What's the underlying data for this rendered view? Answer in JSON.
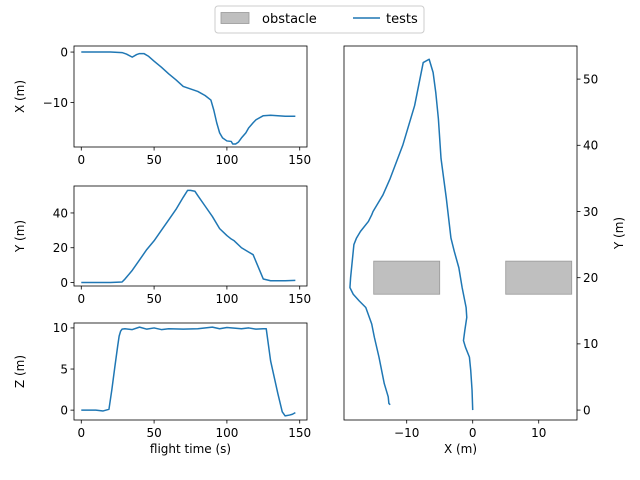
{
  "legend": {
    "entries": [
      {
        "label": "obstacle",
        "kind": "patch",
        "color": "#bfbfbf",
        "edge": "#999999"
      },
      {
        "label": "tests",
        "kind": "line",
        "color": "#1f77b4"
      }
    ],
    "placement": "top-center"
  },
  "chart_data": [
    {
      "id": "x_vs_time",
      "type": "line",
      "xlabel": "",
      "ylabel": "X (m)",
      "xlim": [
        -5,
        155
      ],
      "ylim": [
        -18.8,
        1.2
      ],
      "xticks": [
        0,
        50,
        100,
        150
      ],
      "yticks": [
        0,
        -10
      ],
      "series": [
        {
          "color": "#1f77b4",
          "x": [
            0,
            10,
            20,
            28,
            31,
            35,
            38,
            40,
            43,
            46,
            50,
            55,
            60,
            65,
            70,
            75,
            80,
            85,
            89,
            91,
            93,
            95,
            97,
            100,
            103,
            104,
            106,
            108,
            110,
            113,
            115,
            118,
            120,
            125,
            130,
            135,
            140,
            147
          ],
          "y": [
            0,
            0,
            0,
            -0.1,
            -0.4,
            -1.0,
            -0.5,
            -0.3,
            -0.3,
            -0.8,
            -1.8,
            -3.0,
            -4.3,
            -5.5,
            -6.8,
            -7.3,
            -7.8,
            -8.6,
            -9.5,
            -11.5,
            -14.0,
            -16.0,
            -17.0,
            -17.6,
            -17.7,
            -18.2,
            -18.2,
            -17.8,
            -17.0,
            -16.0,
            -15.0,
            -14.0,
            -13.4,
            -12.6,
            -12.5,
            -12.6,
            -12.7,
            -12.7
          ]
        }
      ]
    },
    {
      "id": "y_vs_time",
      "type": "line",
      "xlabel": "",
      "ylabel": "Y (m)",
      "xlim": [
        -5,
        155
      ],
      "ylim": [
        -2,
        55.5
      ],
      "xticks": [
        0,
        50,
        100,
        150
      ],
      "yticks": [
        0,
        20,
        40
      ],
      "series": [
        {
          "color": "#1f77b4",
          "x": [
            0,
            10,
            20,
            28,
            30,
            35,
            40,
            45,
            50,
            55,
            60,
            65,
            70,
            73,
            75,
            78,
            80,
            85,
            90,
            95,
            100,
            103,
            105,
            110,
            115,
            118,
            120,
            125,
            130,
            140,
            147
          ],
          "y": [
            0,
            0,
            0,
            0.3,
            2,
            7,
            13,
            19,
            24,
            30,
            36,
            42,
            49,
            53,
            53,
            52.5,
            50,
            44,
            38,
            31,
            27,
            25,
            24,
            20,
            17.5,
            16,
            12,
            2,
            1,
            1,
            1.2
          ]
        }
      ]
    },
    {
      "id": "z_vs_time",
      "type": "line",
      "xlabel": "flight time (s)",
      "ylabel": "Z (m)",
      "xlim": [
        -5,
        155
      ],
      "ylim": [
        -1.2,
        10.6
      ],
      "xticks": [
        0,
        50,
        100,
        150
      ],
      "yticks": [
        0,
        5,
        10
      ],
      "series": [
        {
          "color": "#1f77b4",
          "x": [
            0,
            5,
            10,
            15,
            19,
            21,
            23,
            25,
            26,
            27,
            28,
            30,
            35,
            40,
            45,
            50,
            55,
            60,
            70,
            80,
            90,
            95,
            100,
            110,
            115,
            120,
            125,
            126,
            127,
            130,
            135,
            138,
            140,
            143,
            145,
            147
          ],
          "y": [
            0,
            0,
            0,
            -0.1,
            0.1,
            2.5,
            5.2,
            7.8,
            9.0,
            9.6,
            9.85,
            9.9,
            9.8,
            10.1,
            9.85,
            10.0,
            9.8,
            9.9,
            9.85,
            9.9,
            10.1,
            9.9,
            10.05,
            9.9,
            10.0,
            9.85,
            9.9,
            9.9,
            9.9,
            6,
            2,
            -0.2,
            -0.7,
            -0.6,
            -0.5,
            -0.3
          ]
        }
      ]
    },
    {
      "id": "top_down",
      "type": "line",
      "xlabel": "X (m)",
      "ylabel": "Y (m)",
      "xlim": [
        -19.5,
        15.8
      ],
      "ylim": [
        -1.5,
        55
      ],
      "xticks": [
        -10,
        0,
        10
      ],
      "yticks": [
        0,
        10,
        20,
        30,
        40,
        50
      ],
      "y_axis_side": "right",
      "obstacles": [
        {
          "x": [
            -15,
            -5
          ],
          "y": [
            17.5,
            22.5
          ]
        },
        {
          "x": [
            5,
            15
          ],
          "y": [
            17.5,
            22.5
          ]
        }
      ],
      "series": [
        {
          "color": "#1f77b4",
          "x": [
            0,
            -0.1,
            -0.3,
            -0.5,
            -1.1,
            -1.4,
            -1.2,
            -0.9,
            -1.0,
            -1.6,
            -2.1,
            -2.8,
            -3.3,
            -4.0,
            -4.8,
            -5.2,
            -5.6,
            -6.0,
            -6.6,
            -7.5,
            -8.8,
            -10.6,
            -12.5,
            -13.6,
            -14.5,
            -15.1,
            -15.3,
            -15.8,
            -17.0,
            -17.6,
            -18.0,
            -18.5,
            -18.6,
            -18.1,
            -17.2,
            -16.2,
            -15.3,
            -14.9,
            -14.2,
            -13.4,
            -12.8,
            -12.7,
            -12.5
          ],
          "y": [
            0,
            3,
            6,
            8,
            9.5,
            10.5,
            12,
            14,
            15.5,
            18.5,
            21.5,
            24,
            26,
            32,
            38,
            44,
            48,
            51,
            53,
            52.5,
            46,
            40,
            35,
            32.5,
            31,
            30,
            29.5,
            28.5,
            27,
            26,
            25,
            20,
            18.5,
            17.5,
            16.5,
            15.5,
            13,
            11,
            8,
            4,
            2,
            1,
            0.8
          ]
        }
      ]
    }
  ]
}
